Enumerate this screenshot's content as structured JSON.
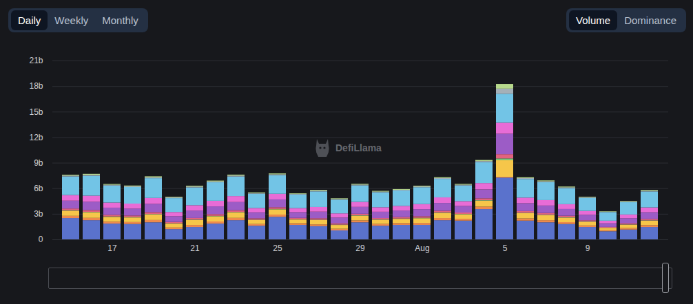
{
  "chart_data": {
    "type": "bar",
    "stacked": true,
    "grid": true,
    "categories": [
      null,
      null,
      "17",
      null,
      null,
      null,
      "21",
      null,
      null,
      null,
      "25",
      null,
      null,
      null,
      "29",
      null,
      null,
      "Aug",
      null,
      null,
      null,
      "5",
      null,
      null,
      null,
      "9",
      null,
      null,
      null
    ],
    "ylim": [
      0,
      21
    ],
    "yticks": [
      {
        "value": 0,
        "label": "0"
      },
      {
        "value": 3,
        "label": "3b"
      },
      {
        "value": 6,
        "label": "6b"
      },
      {
        "value": 9,
        "label": "9b"
      },
      {
        "value": 12,
        "label": "12b"
      },
      {
        "value": 15,
        "label": "15b"
      },
      {
        "value": 18,
        "label": "18b"
      },
      {
        "value": 21,
        "label": "21b"
      }
    ],
    "series": [
      {
        "color": "#5a72cc",
        "values": [
          2.5,
          2.25,
          1.85,
          1.8,
          2.0,
          1.2,
          1.45,
          1.85,
          2.25,
          1.6,
          2.65,
          1.7,
          1.55,
          1.05,
          2.0,
          1.6,
          1.7,
          1.7,
          2.25,
          2.2,
          3.55,
          7.25,
          2.2,
          2.0,
          1.8,
          1.45,
          0.95,
          1.15,
          1.45
        ]
      },
      {
        "color": "#ee8a4c",
        "values": [
          0.26,
          0.27,
          0.23,
          0.23,
          0.27,
          0.19,
          0.24,
          0.25,
          0.27,
          0.2,
          0.26,
          0.19,
          0.21,
          0.19,
          0.23,
          0.21,
          0.21,
          0.23,
          0.25,
          0.22,
          0.29,
          0.1,
          0.26,
          0.25,
          0.22,
          0.18,
          0.12,
          0.17,
          0.22
        ]
      },
      {
        "color": "#f6c64a",
        "values": [
          0.61,
          0.65,
          0.56,
          0.54,
          0.65,
          0.46,
          0.58,
          0.61,
          0.64,
          0.47,
          0.61,
          0.44,
          0.51,
          0.45,
          0.54,
          0.49,
          0.5,
          0.55,
          0.61,
          0.52,
          0.69,
          1.95,
          0.61,
          0.59,
          0.53,
          0.43,
          0.28,
          0.4,
          0.52
        ]
      },
      {
        "color": "#7ccf7a",
        "values": [
          0.05,
          0.05,
          0.05,
          0.05,
          0.05,
          0.04,
          0.05,
          0.05,
          0.05,
          0.04,
          0.05,
          0.04,
          0.04,
          0.04,
          0.05,
          0.04,
          0.04,
          0.05,
          0.05,
          0.04,
          0.06,
          0.2,
          0.05,
          0.05,
          0.04,
          0.04,
          0.02,
          0.03,
          0.04
        ]
      },
      {
        "color": "#e2627e",
        "values": [
          0.2,
          0.22,
          0.19,
          0.18,
          0.22,
          0.15,
          0.19,
          0.2,
          0.21,
          0.16,
          0.2,
          0.15,
          0.17,
          0.15,
          0.18,
          0.16,
          0.17,
          0.18,
          0.2,
          0.17,
          0.23,
          0.5,
          0.2,
          0.2,
          0.18,
          0.14,
          0.09,
          0.13,
          0.17
        ]
      },
      {
        "color": "#9c5cc6",
        "values": [
          0.92,
          0.98,
          0.84,
          0.81,
          0.97,
          0.68,
          0.87,
          0.91,
          0.96,
          0.7,
          0.92,
          0.67,
          0.77,
          0.68,
          0.81,
          0.74,
          0.76,
          0.83,
          0.91,
          0.77,
          1.04,
          2.4,
          0.92,
          0.88,
          0.79,
          0.64,
          0.42,
          0.6,
          0.78
        ]
      },
      {
        "color": "#e86cd6",
        "values": [
          0.66,
          0.71,
          0.6,
          0.59,
          0.7,
          0.49,
          0.63,
          0.66,
          0.7,
          0.51,
          0.66,
          0.48,
          0.55,
          0.49,
          0.59,
          0.53,
          0.55,
          0.6,
          0.66,
          0.56,
          0.75,
          1.3,
          0.66,
          0.64,
          0.57,
          0.46,
          0.31,
          0.44,
          0.57
        ]
      },
      {
        "color": "#72c4e6",
        "values": [
          2.19,
          2.34,
          2.0,
          1.94,
          2.32,
          1.63,
          2.09,
          2.17,
          2.3,
          1.68,
          2.19,
          1.59,
          1.83,
          1.61,
          1.94,
          1.76,
          1.81,
          1.98,
          2.17,
          1.85,
          2.47,
          3.4,
          2.19,
          2.11,
          1.89,
          1.53,
          1.01,
          1.44,
          1.87
        ]
      },
      {
        "color": "#a4b0b8",
        "values": [
          0.1,
          0.11,
          0.09,
          0.09,
          0.11,
          0.08,
          0.1,
          0.1,
          0.11,
          0.08,
          0.1,
          0.07,
          0.09,
          0.08,
          0.09,
          0.08,
          0.08,
          0.09,
          0.1,
          0.09,
          0.12,
          0.6,
          0.1,
          0.1,
          0.09,
          0.07,
          0.05,
          0.07,
          0.09
        ]
      },
      {
        "color": "#b7d98c",
        "values": [
          0.1,
          0.11,
          0.09,
          0.09,
          0.11,
          0.08,
          0.1,
          0.1,
          0.11,
          0.08,
          0.1,
          0.07,
          0.09,
          0.08,
          0.09,
          0.08,
          0.08,
          0.09,
          0.1,
          0.09,
          0.12,
          0.55,
          0.1,
          0.1,
          0.09,
          0.07,
          0.05,
          0.07,
          0.09
        ]
      }
    ]
  },
  "controls": {
    "period": {
      "options": [
        "Daily",
        "Weekly",
        "Monthly"
      ],
      "selected": "Daily"
    },
    "metric": {
      "options": [
        "Volume",
        "Dominance"
      ],
      "selected": "Volume"
    }
  },
  "watermark": "DefiLlama"
}
